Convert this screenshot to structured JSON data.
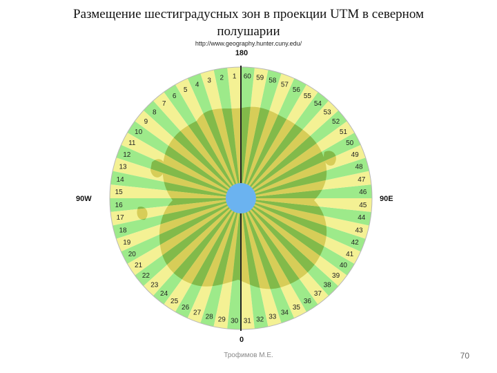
{
  "title": "Размещение шестиградусных зон в проекции UTM в северном полушарии",
  "source_url": "http://www.geography.hunter.cuny.edu/",
  "meridians": {
    "top": "180",
    "bottom": "0",
    "left": "90W",
    "right": "90E"
  },
  "zones": {
    "count": 60,
    "labels": [
      "1",
      "2",
      "3",
      "4",
      "5",
      "6",
      "7",
      "8",
      "9",
      "10",
      "11",
      "12",
      "13",
      "14",
      "15",
      "16",
      "17",
      "18",
      "19",
      "20",
      "21",
      "22",
      "23",
      "24",
      "25",
      "26",
      "27",
      "28",
      "29",
      "30",
      "31",
      "32",
      "33",
      "34",
      "35",
      "36",
      "37",
      "38",
      "39",
      "40",
      "41",
      "42",
      "43",
      "44",
      "45",
      "46",
      "47",
      "48",
      "49",
      "50",
      "51",
      "52",
      "53",
      "54",
      "55",
      "56",
      "57",
      "58",
      "59",
      "60"
    ]
  },
  "colors": {
    "zone_light": "#f4f194",
    "zone_green": "#9dea8a",
    "land_light": "#d7cd58",
    "land_green": "#82ba4a",
    "pole": "#6bb3f0",
    "meridian": "#222222"
  },
  "footer": {
    "author": "Трофимов М.Е.",
    "page": "70"
  }
}
